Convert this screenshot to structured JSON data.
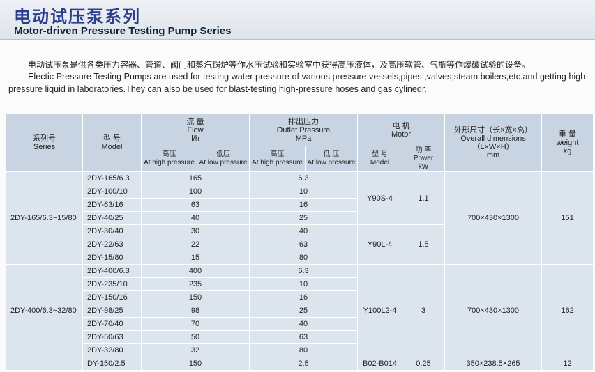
{
  "header": {
    "title_cn": "电动试压泵系列",
    "title_en": "Motor-driven Pressure Testing Pump Series"
  },
  "intro": {
    "cn": "电动试压泵是供各类压力容器、管道、阀门和蒸汽锅炉等作水压试验和实验室中获得高压液体，及高压软管、气瓶等作爆破试验的设备。",
    "en": "Electic Pressure Testing Pumps are used for testing water pressure of various pressure vessels,pipes ,valves,steam boilers,etc.and getting high pressure liquid in laboratories.They can also be used for blast-testing high-pressure hoses and gas cylinedr."
  },
  "table": {
    "columns": {
      "series": [
        "系列号",
        "Series"
      ],
      "model": [
        "型 号",
        "Model"
      ],
      "flow": [
        "流 量",
        "Flow",
        "l/h"
      ],
      "flow_high": [
        "高压",
        "At high pressure"
      ],
      "flow_low": [
        "低压",
        "At low pressure"
      ],
      "pressure": [
        "排出压力",
        "Outlet Pressure",
        "MPa"
      ],
      "pressure_high": [
        "高压",
        "At high pressure"
      ],
      "pressure_low": [
        "低 压",
        "At low pressure"
      ],
      "motor": [
        "电 机",
        "Motor"
      ],
      "motor_model": [
        "型 号",
        "Model"
      ],
      "motor_power": [
        "功 率",
        "Power",
        "kW"
      ],
      "dimensions": [
        "外形尺寸（长×宽×高）",
        "Overall dimensions",
        "（L×W×H）",
        "mm"
      ],
      "weight": [
        "重 量",
        "weight",
        "kg"
      ]
    },
    "groups": [
      {
        "series": "2DY-165/6.3~15/80",
        "dimensions": "700×430×1300",
        "weight": "151",
        "motors": [
          {
            "model": "Y90S-4",
            "power": "1.1",
            "pumps": [
              {
                "model": "2DY-165/6.3",
                "flow": "165",
                "pressure": "6.3"
              },
              {
                "model": "2DY-100/10",
                "flow": "100",
                "pressure": "10"
              },
              {
                "model": "2DY-63/16",
                "flow": "63",
                "pressure": "16"
              },
              {
                "model": "2DY-40/25",
                "flow": "40",
                "pressure": "25"
              }
            ]
          },
          {
            "model": "Y90L-4",
            "power": "1.5",
            "pumps": [
              {
                "model": "2DY-30/40",
                "flow": "30",
                "pressure": "40"
              },
              {
                "model": "2DY-22/63",
                "flow": "22",
                "pressure": "63"
              },
              {
                "model": "2DY-15/80",
                "flow": "15",
                "pressure": "80"
              }
            ]
          }
        ]
      },
      {
        "series": "2DY-400/6.3~32/80",
        "dimensions": "700×430×1300",
        "weight": "162",
        "motors": [
          {
            "model": "Y100L2-4",
            "power": "3",
            "pumps": [
              {
                "model": "2DY-400/6.3",
                "flow": "400",
                "pressure": "6.3"
              },
              {
                "model": "2DY-235/10",
                "flow": "235",
                "pressure": "10"
              },
              {
                "model": "2DY-150/16",
                "flow": "150",
                "pressure": "16"
              },
              {
                "model": "2DY-98/25",
                "flow": "98",
                "pressure": "25"
              },
              {
                "model": "2DY-70/40",
                "flow": "70",
                "pressure": "40"
              },
              {
                "model": "2DY-50/63",
                "flow": "50",
                "pressure": "63"
              },
              {
                "model": "2DY-32/80",
                "flow": "32",
                "pressure": "80"
              }
            ]
          }
        ]
      },
      {
        "dimensions": "350×238.5×265",
        "weight": "12",
        "motors": [
          {
            "model": "B02-B014",
            "power": "0.25",
            "pumps": [
              {
                "model": "DY-150/2.5",
                "flow": "150",
                "pressure": "2.5"
              }
            ]
          }
        ]
      }
    ]
  }
}
